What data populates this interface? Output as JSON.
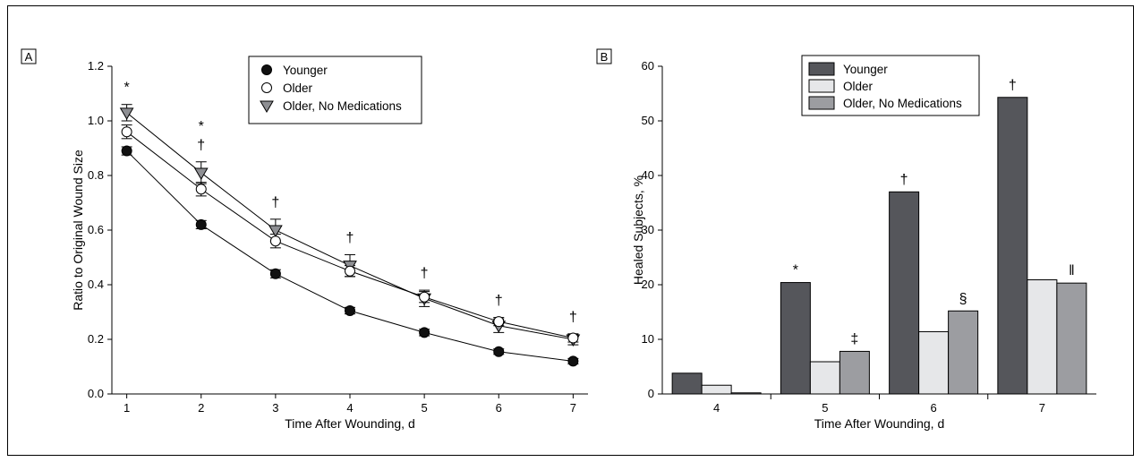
{
  "chart_data": [
    {
      "panel": "A",
      "type": "line",
      "x": [
        1,
        2,
        3,
        4,
        5,
        6,
        7
      ],
      "xlabel": "Time After Wounding, d",
      "ylabel": "Ratio to Original Wound Size",
      "ylim": [
        0,
        1.2
      ],
      "yticks": [
        "0.0",
        "0.2",
        "0.4",
        "0.6",
        "0.8",
        "1.0",
        "1.2"
      ],
      "legend_position": "top-center",
      "series": [
        {
          "name": "Younger",
          "marker": "filled-circle",
          "values": [
            0.89,
            0.62,
            0.44,
            0.305,
            0.225,
            0.155,
            0.12
          ],
          "err": [
            0.015,
            0.015,
            0.015,
            0.012,
            0.012,
            0.01,
            0.01
          ]
        },
        {
          "name": "Older",
          "marker": "open-circle",
          "values": [
            0.96,
            0.75,
            0.56,
            0.45,
            0.355,
            0.265,
            0.205
          ],
          "err": [
            0.025,
            0.025,
            0.025,
            0.02,
            0.02,
            0.015,
            0.015
          ]
        },
        {
          "name": "Older, No Medications",
          "marker": "gray-triangle",
          "values": [
            1.03,
            0.81,
            0.6,
            0.47,
            0.35,
            0.25,
            0.2
          ],
          "err": [
            0.03,
            0.04,
            0.04,
            0.04,
            0.03,
            0.025,
            0.02
          ]
        }
      ],
      "annotations": [
        {
          "x": 1,
          "text": "*"
        },
        {
          "x": 2,
          "text": "*"
        },
        {
          "x": 2,
          "text": "†"
        },
        {
          "x": 3,
          "text": "†"
        },
        {
          "x": 4,
          "text": "†"
        },
        {
          "x": 5,
          "text": "†"
        },
        {
          "x": 6,
          "text": "†"
        },
        {
          "x": 7,
          "text": "†"
        }
      ]
    },
    {
      "panel": "B",
      "type": "bar",
      "categories": [
        "4",
        "5",
        "6",
        "7"
      ],
      "xlabel": "Time After Wounding, d",
      "ylabel": "Healed Subjects, %",
      "ylim": [
        0,
        60
      ],
      "yticks": [
        "0",
        "10",
        "20",
        "30",
        "40",
        "50",
        "60"
      ],
      "legend_position": "top-center",
      "series": [
        {
          "name": "Younger",
          "color": "#55565b",
          "values": [
            3.8,
            20.4,
            37.0,
            54.3
          ]
        },
        {
          "name": "Older",
          "color": "#e6e7e9",
          "values": [
            1.6,
            5.9,
            11.4,
            20.9
          ]
        },
        {
          "name": "Older, No Medications",
          "color": "#9c9da1",
          "values": [
            0.2,
            7.8,
            15.2,
            20.3
          ]
        }
      ],
      "annotations": [
        {
          "category": "5",
          "series": 0,
          "text": "*"
        },
        {
          "category": "5",
          "series": 2,
          "text": "‡"
        },
        {
          "category": "6",
          "series": 0,
          "text": "†"
        },
        {
          "category": "6",
          "series": 2,
          "text": "§"
        },
        {
          "category": "7",
          "series": 0,
          "text": "†"
        },
        {
          "category": "7",
          "series": 2,
          "text": "‖"
        }
      ]
    }
  ]
}
